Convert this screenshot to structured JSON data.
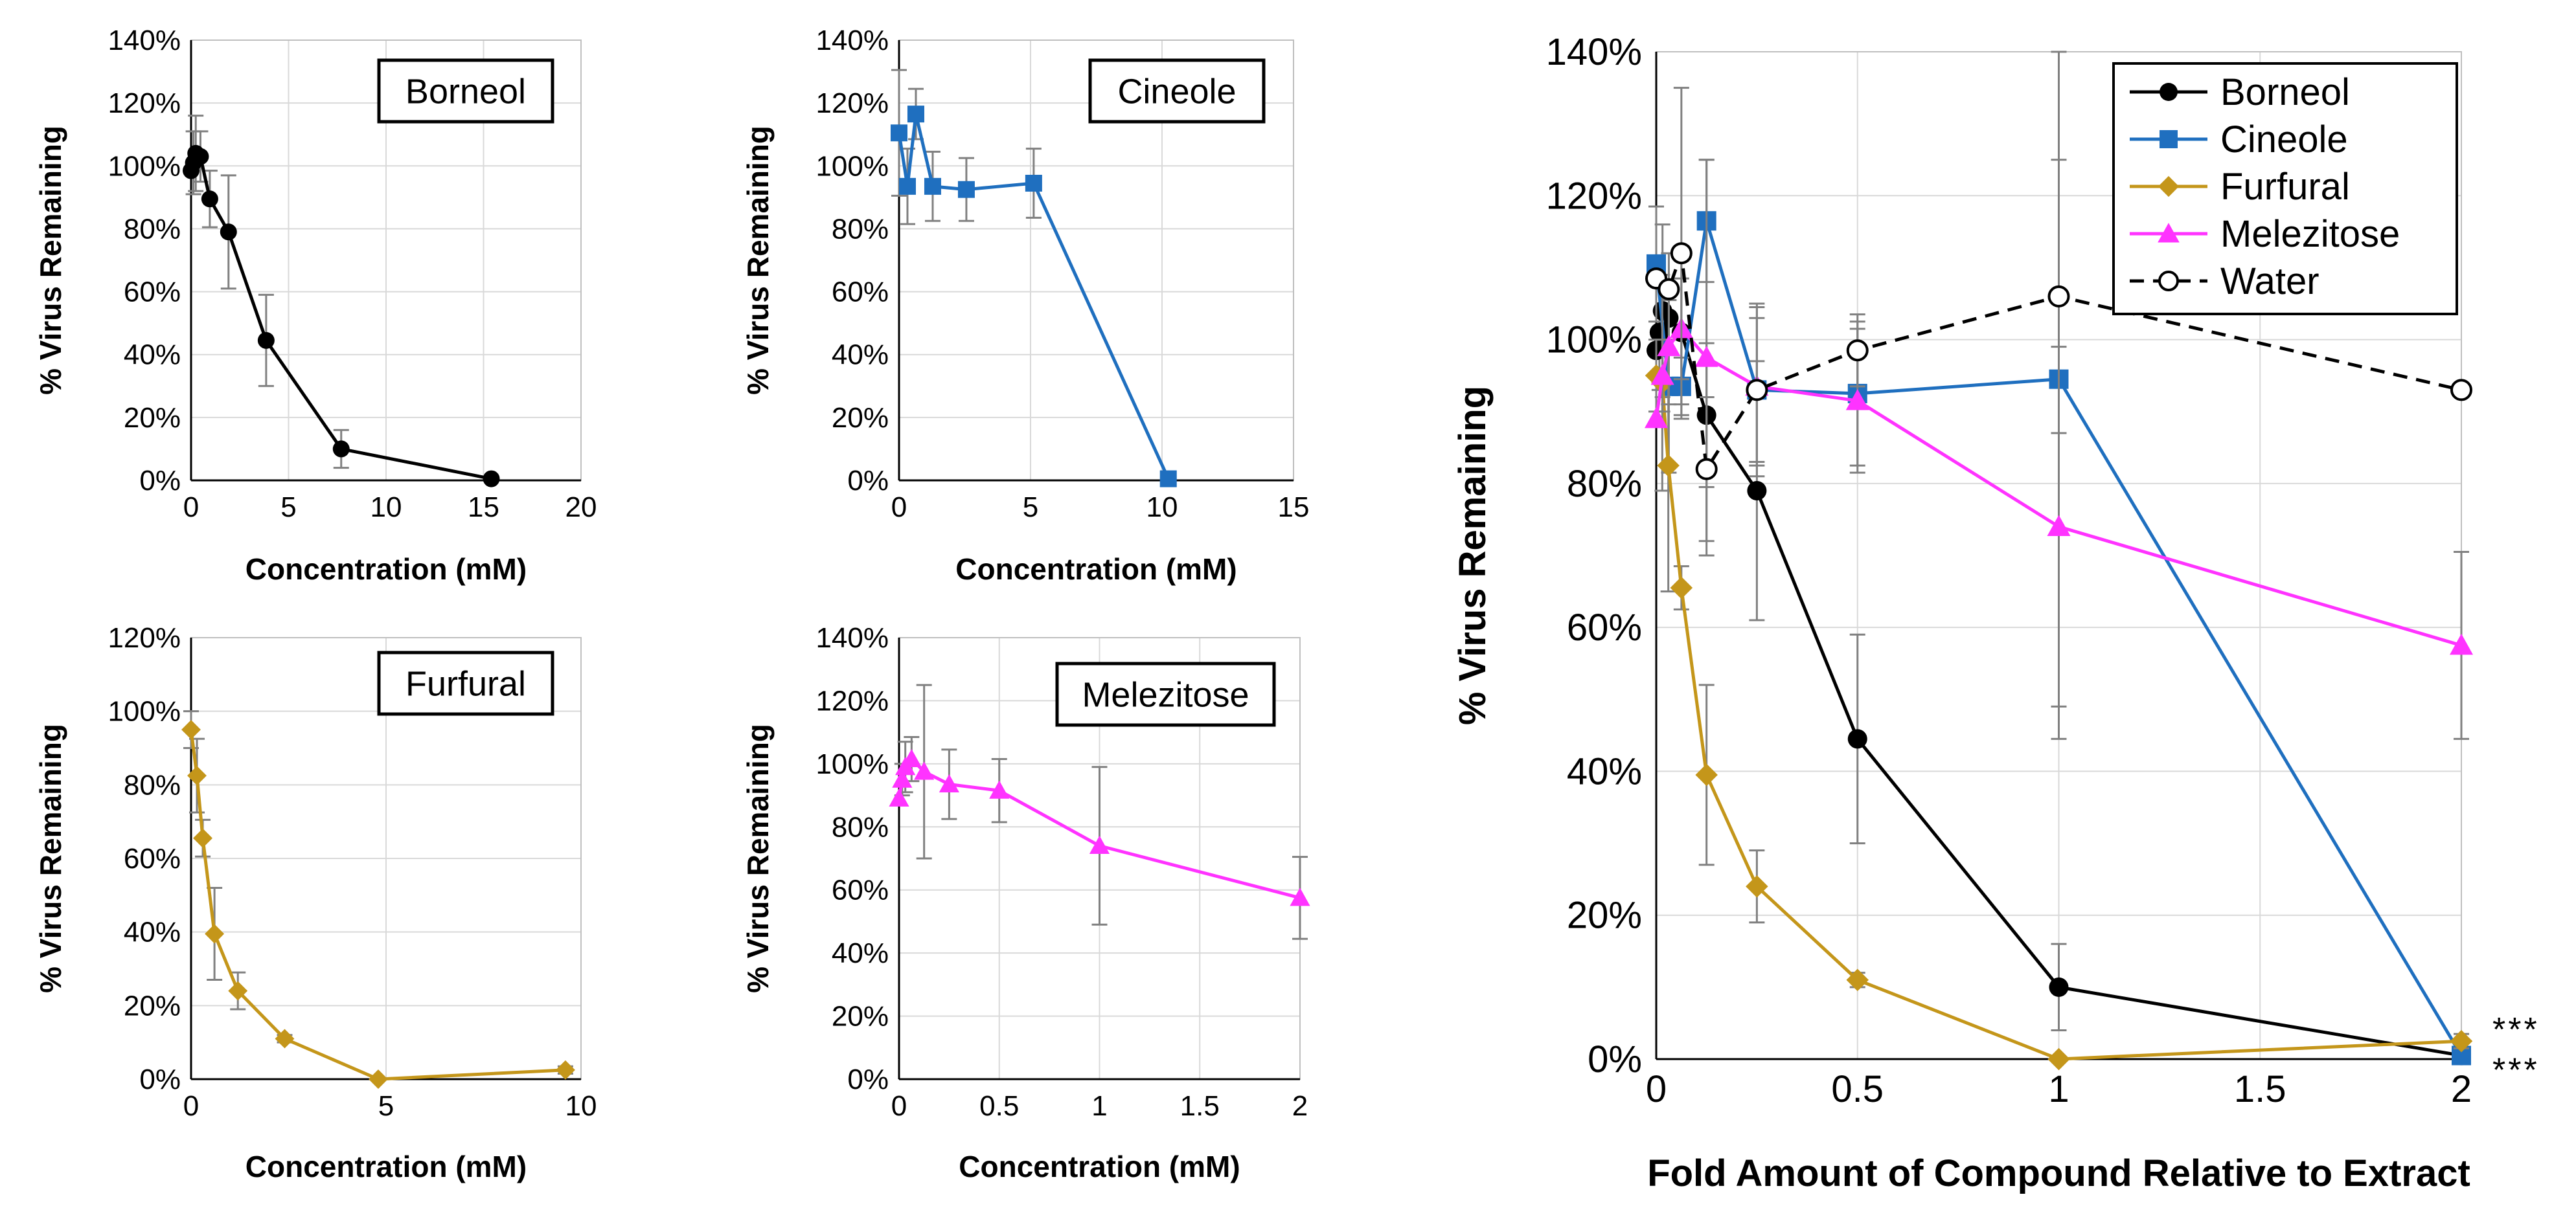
{
  "figure": {
    "description_visible_text_only": true
  },
  "chart_data": [
    {
      "id": "borneol",
      "type": "line",
      "panel_label": "Borneol",
      "color": "#000000",
      "marker": "circle",
      "xlabel": "Concentration (mM)",
      "ylabel": "% Virus Remaining",
      "xlim": [
        0,
        20
      ],
      "ylim": [
        0,
        140
      ],
      "xticks": [
        0,
        5,
        10,
        15,
        20
      ],
      "yticks": [
        0,
        20,
        40,
        60,
        80,
        100,
        120,
        140
      ],
      "xtick_labels": [
        "0",
        "5",
        "10",
        "15",
        "20"
      ],
      "ytick_labels": [
        "0%",
        "20%",
        "40%",
        "60%",
        "80%",
        "100%",
        "120%",
        "140%"
      ],
      "x": [
        0,
        0.12,
        0.24,
        0.48,
        0.96,
        1.92,
        3.85,
        7.7,
        15.4
      ],
      "y": [
        98.5,
        101,
        104,
        103,
        89.5,
        79,
        44.5,
        10,
        0.5
      ],
      "error": [
        0,
        10,
        12,
        8,
        9,
        18,
        14.5,
        6,
        0
      ]
    },
    {
      "id": "cineole",
      "type": "line",
      "panel_label": "Cineole",
      "color": "#1f6fbf",
      "marker": "square",
      "xlabel": "Concentration (mM)",
      "ylabel": "% Virus Remaining",
      "xlim": [
        0,
        15
      ],
      "ylim": [
        0,
        140
      ],
      "xticks": [
        0,
        5,
        10,
        15
      ],
      "yticks": [
        0,
        20,
        40,
        60,
        80,
        100,
        120,
        140
      ],
      "xtick_labels": [
        "0",
        "5",
        "10",
        "15"
      ],
      "ytick_labels": [
        "0%",
        "20%",
        "40%",
        "60%",
        "80%",
        "100%",
        "120%",
        "140%"
      ],
      "x": [
        0,
        0.32,
        0.64,
        1.28,
        2.56,
        5.12,
        10.24
      ],
      "y": [
        110.5,
        93.5,
        116.5,
        93.5,
        92.5,
        94.5,
        0.5
      ],
      "error": [
        20,
        12,
        8,
        11,
        10,
        11,
        0
      ]
    },
    {
      "id": "furfural",
      "type": "line",
      "panel_label": "Furfural",
      "color": "#c4961a",
      "marker": "diamond",
      "xlabel": "Concentration (mM)",
      "ylabel": "% Virus Remaining",
      "xlim": [
        0,
        10
      ],
      "ylim": [
        0,
        120
      ],
      "xticks": [
        0,
        5,
        10
      ],
      "yticks": [
        0,
        20,
        40,
        60,
        80,
        100,
        120
      ],
      "xtick_labels": [
        "0",
        "5",
        "10"
      ],
      "ytick_labels": [
        "0%",
        "20%",
        "40%",
        "60%",
        "80%",
        "100%",
        "120%"
      ],
      "x": [
        0,
        0.15,
        0.3,
        0.6,
        1.2,
        2.4,
        4.8,
        9.6
      ],
      "y": [
        95,
        82.5,
        65.5,
        39.5,
        24,
        11,
        0,
        2.5
      ],
      "error": [
        5,
        10,
        5,
        12.5,
        5,
        1,
        0,
        1
      ]
    },
    {
      "id": "melezitose",
      "type": "line",
      "panel_label": "Melezitose",
      "color": "#ff33ff",
      "marker": "triangle",
      "xlabel": "Concentration (mM)",
      "ylabel": "% Virus Remaining",
      "xlim": [
        0,
        2
      ],
      "ylim": [
        0,
        140
      ],
      "xticks": [
        0,
        0.5,
        1,
        1.5,
        2
      ],
      "yticks": [
        0,
        20,
        40,
        60,
        80,
        100,
        120,
        140
      ],
      "xtick_labels": [
        "0",
        "0.5",
        "1",
        "1.5",
        "2"
      ],
      "ytick_labels": [
        "0%",
        "20%",
        "40%",
        "60%",
        "80%",
        "100%",
        "120%",
        "140%"
      ],
      "x": [
        0,
        0.0156,
        0.03125,
        0.0625,
        0.125,
        0.25,
        0.5,
        1,
        2
      ],
      "y": [
        89,
        95,
        99,
        101.5,
        97.5,
        93.5,
        91.5,
        74,
        57.5
      ],
      "error": [
        0,
        5,
        8,
        7,
        27.5,
        11,
        10,
        25,
        13
      ]
    },
    {
      "id": "combined",
      "type": "line",
      "xlabel": "Fold Amount of Compound Relative to Extract",
      "ylabel": "% Virus Remaining",
      "xlim": [
        0,
        2
      ],
      "ylim": [
        0,
        140
      ],
      "xticks": [
        0,
        0.5,
        1,
        1.5,
        2
      ],
      "yticks": [
        0,
        20,
        40,
        60,
        80,
        100,
        120,
        140
      ],
      "xtick_labels": [
        "0",
        "0.5",
        "1",
        "1.5",
        "2"
      ],
      "ytick_labels": [
        "0%",
        "20%",
        "40%",
        "60%",
        "80%",
        "100%",
        "120%",
        "140%"
      ],
      "legend_position": "top-right",
      "annotations": [
        "***",
        "***"
      ],
      "series": [
        {
          "name": "Borneol",
          "color": "#000000",
          "marker": "circle",
          "dashed": false,
          "x": [
            0,
            0.0078,
            0.0156,
            0.03125,
            0.0625,
            0.125,
            0.25,
            0.5,
            1,
            2
          ],
          "y": [
            98.5,
            101,
            104,
            103,
            101,
            89.5,
            79,
            44.5,
            10,
            0.5
          ],
          "error": [
            0,
            8,
            12,
            9,
            10,
            10,
            18,
            14.5,
            6,
            0
          ]
        },
        {
          "name": "Cineole",
          "color": "#1f6fbf",
          "marker": "square",
          "dashed": false,
          "x": [
            0,
            0.03125,
            0.0625,
            0.125,
            0.25,
            0.5,
            1,
            2
          ],
          "y": [
            110.5,
            93.5,
            93.5,
            116.5,
            93,
            92.5,
            94.5,
            0.5
          ],
          "error": [
            8,
            12,
            4,
            8.5,
            10,
            10,
            50,
            0
          ]
        },
        {
          "name": "Furfural",
          "color": "#c4961a",
          "marker": "diamond",
          "dashed": false,
          "x": [
            0,
            0.015,
            0.03,
            0.0625,
            0.125,
            0.25,
            0.5,
            1,
            2
          ],
          "y": [
            95,
            94,
            82.5,
            65.5,
            39.5,
            24,
            11,
            0,
            2.5
          ],
          "error": [
            5,
            15,
            17.5,
            3,
            12.5,
            5,
            1,
            0,
            1
          ]
        },
        {
          "name": "Melezitose",
          "color": "#ff33ff",
          "marker": "triangle",
          "dashed": false,
          "x": [
            0,
            0.0156,
            0.03125,
            0.0625,
            0.125,
            0.25,
            0.5,
            1,
            2
          ],
          "y": [
            89,
            95,
            99,
            101.5,
            97.5,
            93.5,
            91.5,
            74,
            57.5
          ],
          "error": [
            0,
            5,
            8,
            7,
            27.5,
            11,
            10,
            25,
            13
          ]
        },
        {
          "name": "Water",
          "color": "#000000",
          "marker": "open-circle",
          "dashed": true,
          "x": [
            0,
            0.03125,
            0.0625,
            0.125,
            0.25,
            0.5,
            1,
            2
          ],
          "y": [
            108.5,
            107,
            112,
            82,
            93,
            98.5,
            106,
            93
          ],
          "error": [
            0,
            0,
            23,
            10,
            12,
            5,
            19,
            0
          ]
        }
      ]
    }
  ]
}
